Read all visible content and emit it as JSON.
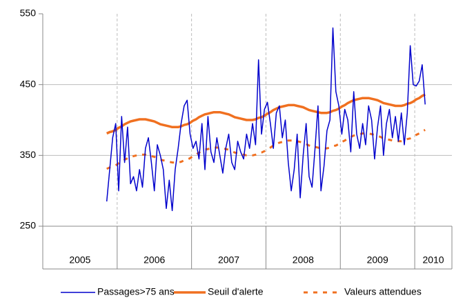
{
  "chart_data": {
    "type": "line",
    "ylim": [
      250,
      550
    ],
    "yticks": [
      250,
      350,
      450,
      550
    ],
    "xlim": [
      2005,
      2010.5
    ],
    "grid": true,
    "legend": "bottom",
    "years": [
      {
        "label": "2005",
        "from": 2005,
        "to": 2006
      },
      {
        "label": "2006",
        "from": 2006,
        "to": 2007
      },
      {
        "label": "2007",
        "from": 2007,
        "to": 2008
      },
      {
        "label": "2008",
        "from": 2008,
        "to": 2009
      },
      {
        "label": "2009",
        "from": 2009,
        "to": 2010
      },
      {
        "label": "2010",
        "from": 2010,
        "to": 2010.5
      }
    ],
    "x": [
      2005.86,
      2005.9,
      2005.94,
      2005.98,
      2006.02,
      2006.06,
      2006.1,
      2006.14,
      2006.18,
      2006.22,
      2006.26,
      2006.3,
      2006.34,
      2006.38,
      2006.42,
      2006.46,
      2006.5,
      2006.54,
      2006.58,
      2006.62,
      2006.66,
      2006.7,
      2006.74,
      2006.78,
      2006.82,
      2006.86,
      2006.9,
      2006.94,
      2006.98,
      2007.02,
      2007.06,
      2007.1,
      2007.14,
      2007.18,
      2007.22,
      2007.26,
      2007.3,
      2007.34,
      2007.38,
      2007.42,
      2007.46,
      2007.5,
      2007.54,
      2007.58,
      2007.62,
      2007.66,
      2007.7,
      2007.74,
      2007.78,
      2007.82,
      2007.86,
      2007.9,
      2007.94,
      2007.98,
      2008.02,
      2008.06,
      2008.1,
      2008.14,
      2008.18,
      2008.22,
      2008.26,
      2008.3,
      2008.34,
      2008.38,
      2008.42,
      2008.46,
      2008.5,
      2008.54,
      2008.58,
      2008.62,
      2008.66,
      2008.7,
      2008.74,
      2008.78,
      2008.82,
      2008.86,
      2008.9,
      2008.94,
      2008.98,
      2009.02,
      2009.06,
      2009.1,
      2009.14,
      2009.18,
      2009.22,
      2009.26,
      2009.3,
      2009.34,
      2009.38,
      2009.42,
      2009.46,
      2009.5,
      2009.54,
      2009.58,
      2009.62,
      2009.66,
      2009.7,
      2009.74,
      2009.78,
      2009.82,
      2009.86,
      2009.9,
      2009.94,
      2009.98,
      2010.02,
      2010.06,
      2010.1,
      2010.14
    ],
    "series": [
      {
        "name": "Passages>75 ans",
        "color": "#0000cc",
        "width": 1.5,
        "dash": "none",
        "values": [
          285,
          330,
          375,
          395,
          300,
          405,
          340,
          390,
          310,
          320,
          300,
          330,
          305,
          360,
          375,
          340,
          300,
          365,
          350,
          330,
          275,
          315,
          272,
          330,
          360,
          395,
          420,
          428,
          380,
          360,
          370,
          345,
          395,
          330,
          405,
          355,
          340,
          375,
          350,
          325,
          360,
          380,
          340,
          330,
          370,
          355,
          345,
          380,
          360,
          395,
          365,
          485,
          380,
          415,
          425,
          395,
          360,
          410,
          420,
          375,
          400,
          340,
          300,
          330,
          380,
          290,
          350,
          395,
          320,
          305,
          360,
          420,
          300,
          335,
          385,
          400,
          530,
          440,
          420,
          380,
          415,
          400,
          355,
          440,
          380,
          360,
          395,
          365,
          420,
          400,
          345,
          390,
          420,
          350,
          395,
          415,
          375,
          405,
          370,
          410,
          365,
          410,
          505,
          450,
          448,
          455,
          478,
          422
        ]
      },
      {
        "name": "Seuil d'alerte",
        "color": "#f07020",
        "width": 3.5,
        "dash": "none",
        "values": [
          381,
          383,
          384,
          386,
          389,
          391,
          394,
          396,
          398,
          399,
          400,
          401,
          401,
          401,
          400,
          399,
          398,
          396,
          394,
          393,
          392,
          391,
          390,
          390,
          390,
          391,
          393,
          394,
          396,
          399,
          401,
          404,
          406,
          408,
          409,
          410,
          411,
          411,
          411,
          410,
          409,
          408,
          406,
          404,
          403,
          402,
          401,
          400,
          400,
          400,
          401,
          403,
          404,
          406,
          409,
          411,
          414,
          416,
          418,
          419,
          420,
          421,
          421,
          421,
          420,
          419,
          418,
          416,
          414,
          413,
          412,
          411,
          410,
          410,
          410,
          411,
          413,
          414,
          416,
          419,
          421,
          424,
          426,
          428,
          429,
          430,
          431,
          431,
          431,
          430,
          429,
          428,
          426,
          424,
          423,
          422,
          421,
          420,
          420,
          420,
          421,
          423,
          424,
          426,
          429,
          431,
          434,
          436
        ]
      },
      {
        "name": "Valeurs attendues",
        "color": "#f07020",
        "width": 3,
        "dash": "6 8",
        "values": [
          331,
          333,
          334,
          336,
          339,
          341,
          344,
          346,
          348,
          349,
          350,
          351,
          351,
          351,
          350,
          349,
          348,
          346,
          344,
          343,
          342,
          341,
          340,
          340,
          340,
          341,
          343,
          344,
          346,
          349,
          351,
          354,
          356,
          358,
          359,
          360,
          361,
          361,
          361,
          360,
          359,
          358,
          356,
          354,
          353,
          352,
          351,
          350,
          350,
          350,
          351,
          353,
          354,
          356,
          359,
          361,
          364,
          366,
          368,
          369,
          370,
          371,
          371,
          371,
          370,
          369,
          368,
          366,
          364,
          363,
          362,
          361,
          360,
          360,
          360,
          361,
          363,
          364,
          366,
          369,
          371,
          374,
          376,
          378,
          379,
          380,
          381,
          381,
          381,
          380,
          379,
          378,
          376,
          374,
          373,
          372,
          371,
          370,
          370,
          370,
          371,
          373,
          374,
          376,
          379,
          381,
          384,
          386
        ]
      }
    ]
  }
}
